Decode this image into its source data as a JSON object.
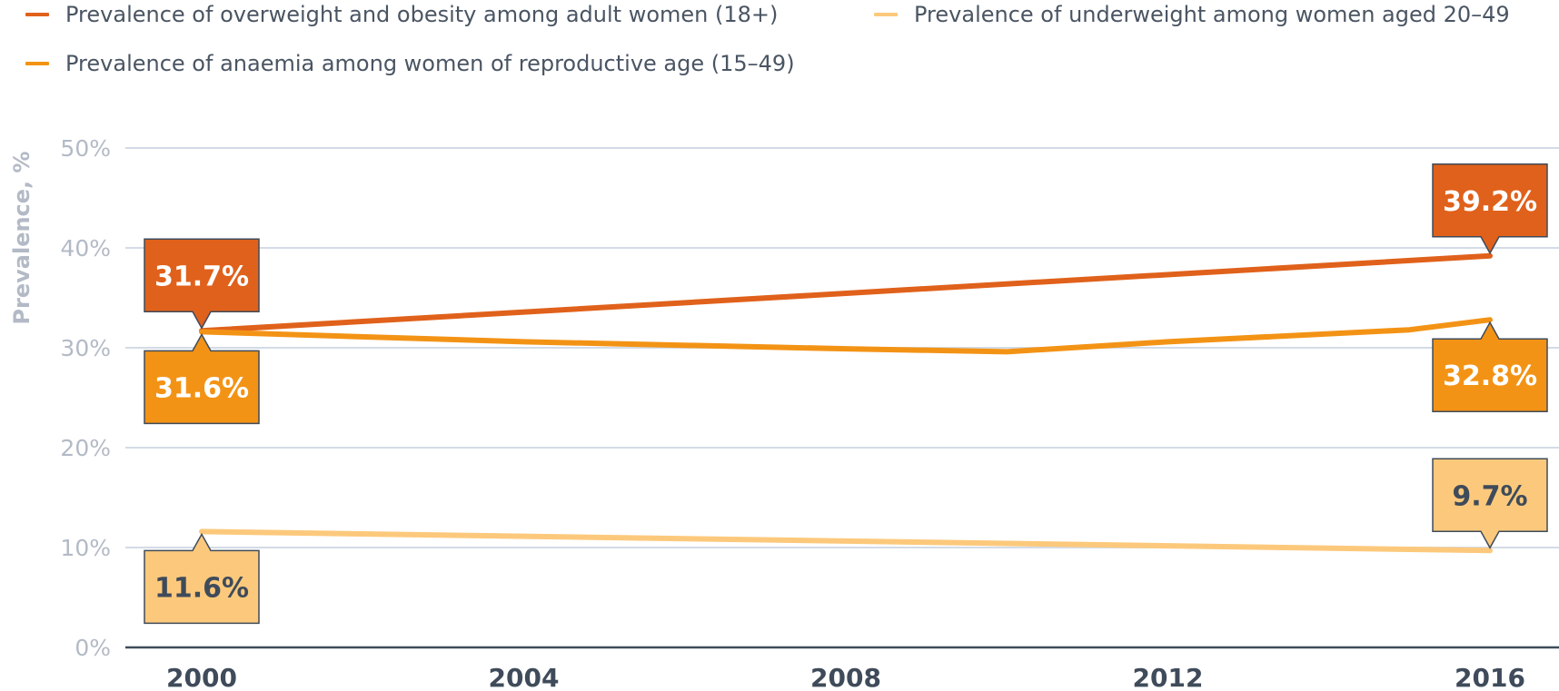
{
  "chart_data": {
    "type": "line",
    "title": "",
    "xlabel": "",
    "ylabel": "Prevalence, %",
    "x_ticks": [
      "2000",
      "2004",
      "2008",
      "2012",
      "2016"
    ],
    "y_ticks": [
      "0%",
      "10%",
      "20%",
      "30%",
      "40%",
      "50%"
    ],
    "xlim": [
      2000,
      2016
    ],
    "ylim": [
      0,
      50
    ],
    "grid": true,
    "legend_position": "top",
    "series": [
      {
        "name": "Prevalence of overweight and obesity among adult women (18+)",
        "color": "#e0611b",
        "x": [
          2000,
          2016
        ],
        "values": [
          31.7,
          39.2
        ],
        "start_label": "31.7%",
        "end_label": "39.2%",
        "label_text_color": "#ffffff",
        "start_label_side": "above",
        "end_label_side": "above"
      },
      {
        "name": "Prevalence of underweight among women aged 20–49",
        "color": "#fcc97c",
        "x": [
          2000,
          2016
        ],
        "values": [
          11.6,
          9.7
        ],
        "start_label": "11.6%",
        "end_label": "9.7%",
        "label_text_color": "#3f4b5a",
        "start_label_side": "below",
        "end_label_side": "above"
      },
      {
        "name": "Prevalence of anaemia among women of reproductive age (15–49)",
        "color": "#f39315",
        "x": [
          2000,
          2004,
          2008,
          2010,
          2012,
          2015,
          2016
        ],
        "values": [
          31.6,
          30.6,
          29.9,
          29.6,
          30.6,
          31.8,
          32.8
        ],
        "start_label": "31.6%",
        "end_label": "32.8%",
        "label_text_color": "#ffffff",
        "start_label_side": "below",
        "end_label_side": "below"
      }
    ]
  }
}
